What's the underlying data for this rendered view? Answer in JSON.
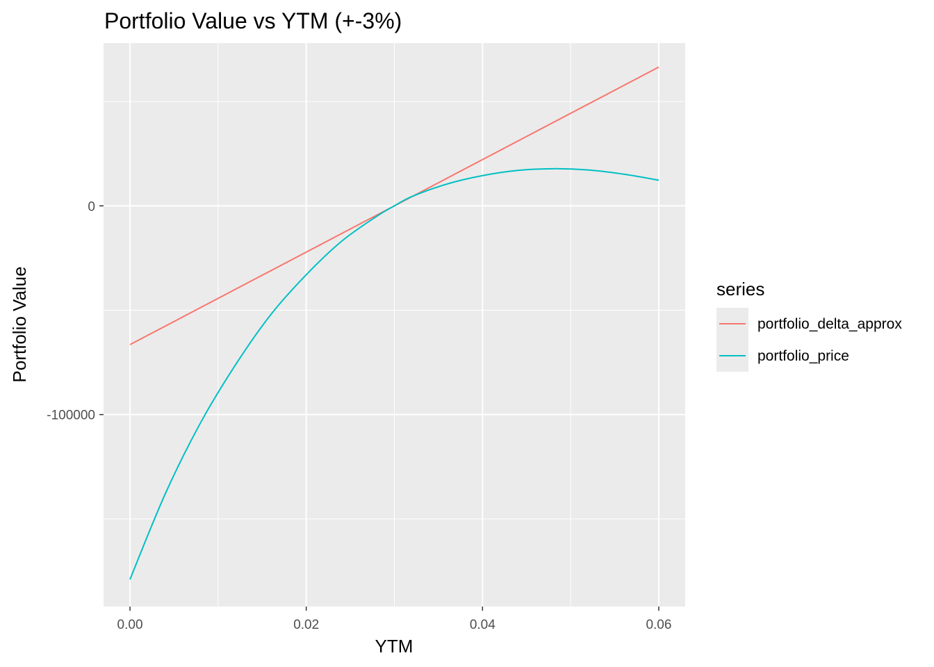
{
  "chart_data": {
    "type": "line",
    "title": "Portfolio Value vs YTM (+-3%)",
    "xlabel": "YTM",
    "ylabel": "Portfolio Value",
    "xlim": [
      -0.003,
      0.063
    ],
    "ylim": [
      -192000,
      78000
    ],
    "x_ticks": [
      0.0,
      0.02,
      0.04,
      0.06
    ],
    "x_tick_labels": [
      "0.00",
      "0.02",
      "0.04",
      "0.06"
    ],
    "y_ticks": [
      -100000,
      0
    ],
    "y_tick_labels": [
      "-100000",
      "0"
    ],
    "grid": true,
    "legend": {
      "title": "series",
      "placement": "right"
    },
    "series": [
      {
        "name": "portfolio_delta_approx",
        "color": "#f8766d",
        "x": [
          0.0,
          0.06
        ],
        "y": [
          -66500,
          66500
        ]
      },
      {
        "name": "portfolio_price",
        "color": "#00bfc4",
        "x": [
          0.0,
          0.004,
          0.008,
          0.012,
          0.016,
          0.02,
          0.024,
          0.028,
          0.03,
          0.032,
          0.036,
          0.04,
          0.044,
          0.048,
          0.052,
          0.056,
          0.06
        ],
        "y": [
          -179000,
          -138000,
          -104000,
          -76000,
          -52000,
          -33000,
          -17000,
          -5000,
          0,
          4500,
          10500,
          14500,
          17000,
          17800,
          17200,
          15200,
          12300
        ]
      }
    ]
  }
}
